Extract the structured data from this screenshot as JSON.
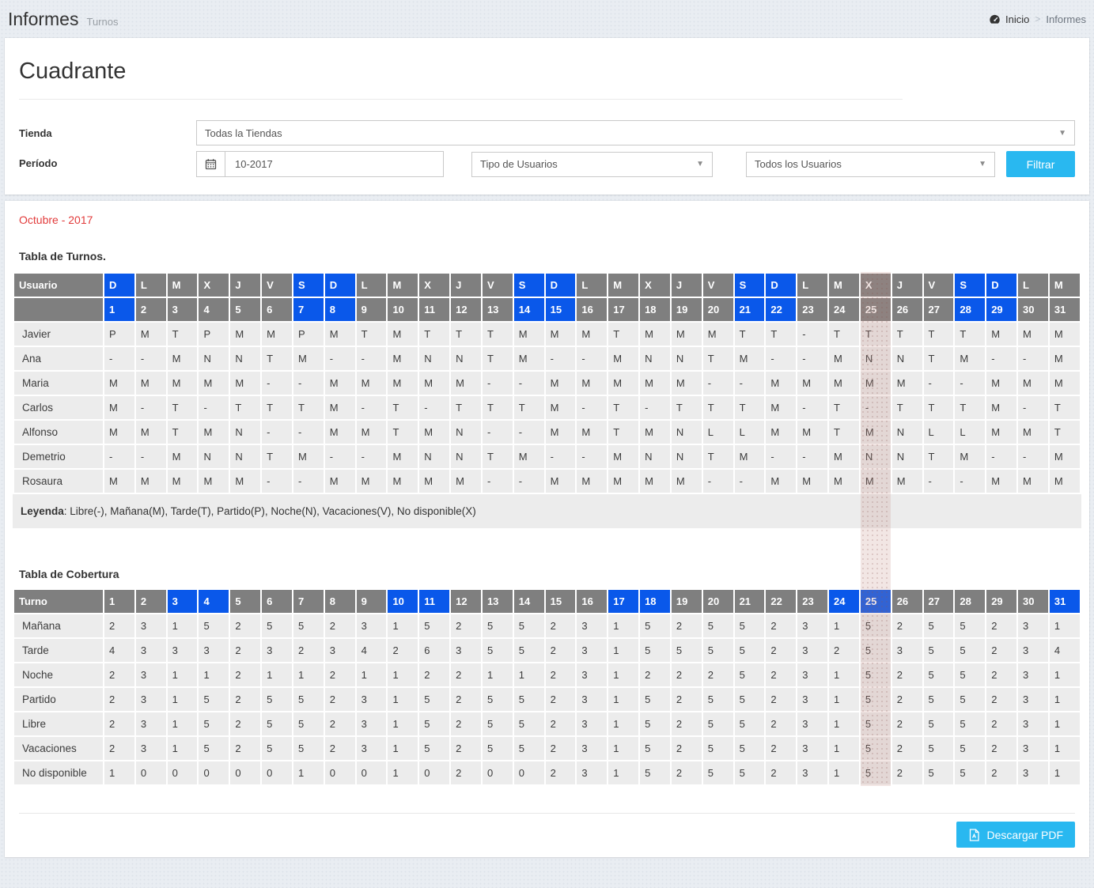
{
  "header": {
    "title": "Informes",
    "subtitle": "Turnos",
    "breadcrumb": {
      "home": "Inicio",
      "separator": ">",
      "current": "Informes"
    }
  },
  "page": {
    "title": "Cuadrante"
  },
  "filters": {
    "tienda_label": "Tienda",
    "tienda_value": "Todas la Tiendas",
    "periodo_label": "Período",
    "periodo_value": "10-2017",
    "tipo_usuarios_value": "Tipo de Usuarios",
    "todos_usuarios_value": "Todos los Usuarios",
    "filtrar_label": "Filtrar"
  },
  "report": {
    "month_title": "Octubre - 2017",
    "today_day": 25,
    "turnos": {
      "title": "Tabla de Turnos.",
      "user_col_header": "Usuario",
      "day_letters": [
        "D",
        "L",
        "M",
        "X",
        "J",
        "V",
        "S",
        "D",
        "L",
        "M",
        "X",
        "J",
        "V",
        "S",
        "D",
        "L",
        "M",
        "X",
        "J",
        "V",
        "S",
        "D",
        "L",
        "M",
        "X",
        "J",
        "V",
        "S",
        "D",
        "L",
        "M"
      ],
      "day_numbers": [
        1,
        2,
        3,
        4,
        5,
        6,
        7,
        8,
        9,
        10,
        11,
        12,
        13,
        14,
        15,
        16,
        17,
        18,
        19,
        20,
        21,
        22,
        23,
        24,
        25,
        26,
        27,
        28,
        29,
        30,
        31
      ],
      "weekend_days": [
        1,
        7,
        8,
        14,
        15,
        21,
        22,
        28,
        29
      ],
      "rows": [
        {
          "name": "Javier",
          "shifts": [
            "P",
            "M",
            "T",
            "P",
            "M",
            "M",
            "P",
            "M",
            "T",
            "M",
            "T",
            "T",
            "T",
            "M",
            "M",
            "M",
            "T",
            "M",
            "M",
            "M",
            "T",
            "T",
            "-",
            "T",
            "T",
            "T",
            "T",
            "T",
            "M",
            "M",
            "M"
          ]
        },
        {
          "name": "Ana",
          "shifts": [
            "-",
            "-",
            "M",
            "N",
            "N",
            "T",
            "M",
            "-",
            "-",
            "M",
            "N",
            "N",
            "T",
            "M",
            "-",
            "-",
            "M",
            "N",
            "N",
            "T",
            "M",
            "-",
            "-",
            "M",
            "N",
            "N",
            "T",
            "M",
            "-",
            "-",
            "M"
          ]
        },
        {
          "name": "Maria",
          "shifts": [
            "M",
            "M",
            "M",
            "M",
            "M",
            "-",
            "-",
            "M",
            "M",
            "M",
            "M",
            "M",
            "-",
            "-",
            "M",
            "M",
            "M",
            "M",
            "M",
            "-",
            "-",
            "M",
            "M",
            "M",
            "M",
            "M",
            "-",
            "-",
            "M",
            "M",
            "M"
          ]
        },
        {
          "name": "Carlos",
          "shifts": [
            "M",
            "-",
            "T",
            "-",
            "T",
            "T",
            "T",
            "M",
            "-",
            "T",
            "-",
            "T",
            "T",
            "T",
            "M",
            "-",
            "T",
            "-",
            "T",
            "T",
            "T",
            "M",
            "-",
            "T",
            "-",
            "T",
            "T",
            "T",
            "M",
            "-",
            "T"
          ]
        },
        {
          "name": "Alfonso",
          "shifts": [
            "M",
            "M",
            "T",
            "M",
            "N",
            "-",
            "-",
            "M",
            "M",
            "T",
            "M",
            "N",
            "-",
            "-",
            "M",
            "M",
            "T",
            "M",
            "N",
            "L",
            "L",
            "M",
            "M",
            "T",
            "M",
            "N",
            "L",
            "L",
            "M",
            "M",
            "T"
          ]
        },
        {
          "name": "Demetrio",
          "shifts": [
            "-",
            "-",
            "M",
            "N",
            "N",
            "T",
            "M",
            "-",
            "-",
            "M",
            "N",
            "N",
            "T",
            "M",
            "-",
            "-",
            "M",
            "N",
            "N",
            "T",
            "M",
            "-",
            "-",
            "M",
            "N",
            "N",
            "T",
            "M",
            "-",
            "-",
            "M"
          ]
        },
        {
          "name": "Rosaura",
          "shifts": [
            "M",
            "M",
            "M",
            "M",
            "M",
            "-",
            "-",
            "M",
            "M",
            "M",
            "M",
            "M",
            "-",
            "-",
            "M",
            "M",
            "M",
            "M",
            "M",
            "-",
            "-",
            "M",
            "M",
            "M",
            "M",
            "M",
            "-",
            "-",
            "M",
            "M",
            "M"
          ]
        }
      ]
    },
    "legend": {
      "label": "Leyenda",
      "text": ": Libre(-), Mañana(M), Tarde(T), Partido(P), Noche(N), Vacaciones(V), No disponible(X)"
    },
    "cobertura": {
      "title": "Tabla de Cobertura",
      "turno_col_header": "Turno",
      "day_numbers": [
        1,
        2,
        3,
        4,
        5,
        6,
        7,
        8,
        9,
        10,
        11,
        12,
        13,
        14,
        15,
        16,
        17,
        18,
        19,
        20,
        21,
        22,
        23,
        24,
        25,
        26,
        27,
        28,
        29,
        30,
        31
      ],
      "highlight_days": [
        3,
        4,
        10,
        11,
        17,
        18,
        24,
        25,
        31
      ],
      "rows": [
        {
          "name": "Mañana",
          "values": [
            2,
            3,
            1,
            5,
            2,
            5,
            5,
            2,
            3,
            1,
            5,
            2,
            5,
            5,
            2,
            3,
            1,
            5,
            2,
            5,
            5,
            2,
            3,
            1,
            5,
            2,
            5,
            5,
            2,
            3,
            1
          ]
        },
        {
          "name": "Tarde",
          "values": [
            4,
            3,
            3,
            3,
            2,
            3,
            2,
            3,
            4,
            2,
            6,
            3,
            5,
            5,
            2,
            3,
            1,
            5,
            5,
            5,
            5,
            2,
            3,
            2,
            5,
            3,
            5,
            5,
            2,
            3,
            4
          ]
        },
        {
          "name": "Noche",
          "values": [
            2,
            3,
            1,
            1,
            2,
            1,
            1,
            2,
            1,
            1,
            2,
            2,
            1,
            1,
            2,
            3,
            1,
            2,
            2,
            2,
            5,
            2,
            3,
            1,
            5,
            2,
            5,
            5,
            2,
            3,
            1
          ]
        },
        {
          "name": "Partido",
          "values": [
            2,
            3,
            1,
            5,
            2,
            5,
            5,
            2,
            3,
            1,
            5,
            2,
            5,
            5,
            2,
            3,
            1,
            5,
            2,
            5,
            5,
            2,
            3,
            1,
            5,
            2,
            5,
            5,
            2,
            3,
            1
          ]
        },
        {
          "name": "Libre",
          "values": [
            2,
            3,
            1,
            5,
            2,
            5,
            5,
            2,
            3,
            1,
            5,
            2,
            5,
            5,
            2,
            3,
            1,
            5,
            2,
            5,
            5,
            2,
            3,
            1,
            5,
            2,
            5,
            5,
            2,
            3,
            1
          ]
        },
        {
          "name": "Vacaciones",
          "values": [
            2,
            3,
            1,
            5,
            2,
            5,
            5,
            2,
            3,
            1,
            5,
            2,
            5,
            5,
            2,
            3,
            1,
            5,
            2,
            5,
            5,
            2,
            3,
            1,
            5,
            2,
            5,
            5,
            2,
            3,
            1
          ]
        },
        {
          "name": "No disponible",
          "values": [
            1,
            0,
            0,
            0,
            0,
            0,
            1,
            0,
            0,
            1,
            0,
            2,
            0,
            0,
            2,
            3,
            1,
            5,
            2,
            5,
            5,
            2,
            3,
            1,
            5,
            2,
            5,
            5,
            2,
            3,
            1
          ]
        }
      ]
    },
    "download_label": "Descargar PDF"
  },
  "colors": {
    "accent_blue_header": "#0a58ea",
    "accent_cyan_button": "#29b8f0",
    "month_title_red": "#e23b3b",
    "table_header_gray": "#7f7f7f",
    "row_background": "#ececec",
    "today_band_tint": "#e9d5d2"
  }
}
